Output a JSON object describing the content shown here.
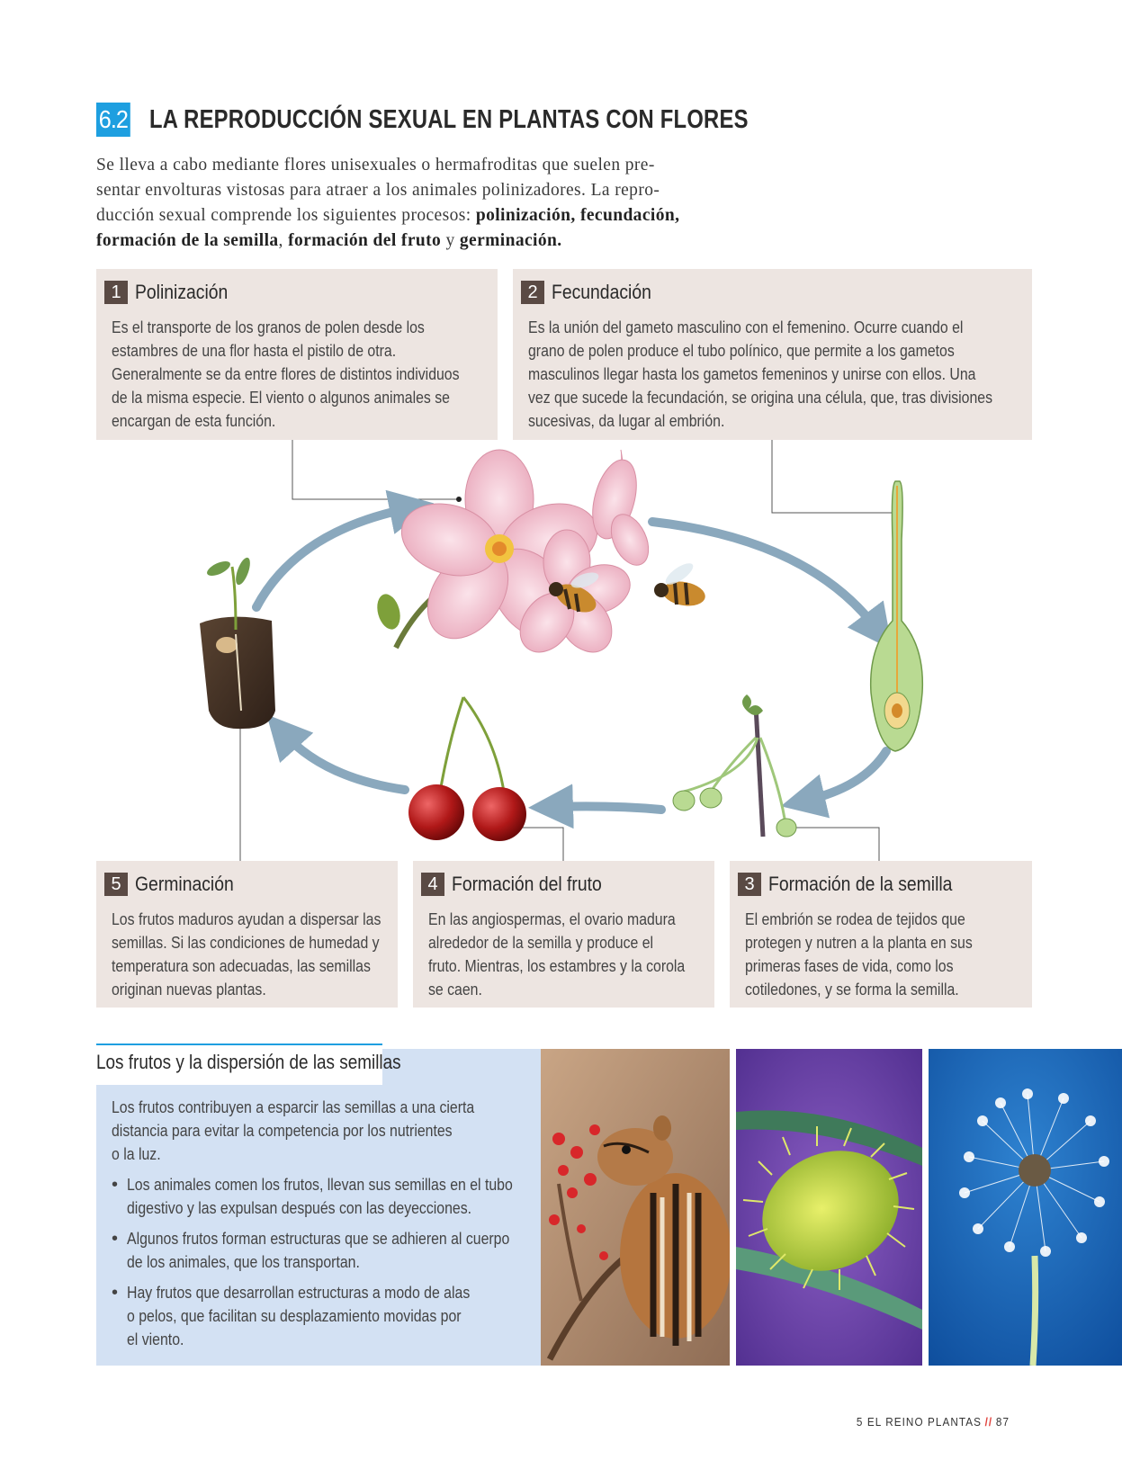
{
  "header": {
    "section_number": "6.2",
    "section_title": "LA REPRODUCCIÓN SEXUAL EN PLANTAS CON FLORES"
  },
  "intro": {
    "lines": [
      "Se lleva a cabo mediante flores unisexuales o hermafroditas que suelen pre-",
      "sentar envolturas vistosas para atraer a los animales polinizadores. La repro-",
      "ducción sexual comprende los siguientes procesos: "
    ],
    "bold_1": "polinización, fecundación,",
    "bold_2": "formación de la semilla",
    "sep_1": ", ",
    "bold_3": "formación del fruto",
    "sep_2": " y ",
    "bold_4": "germinación."
  },
  "steps": [
    {
      "number": "1",
      "title": "Polinización",
      "lines": [
        "Es el transporte de los granos de polen desde los",
        "estambres de una flor hasta el pistilo de otra.",
        "Generalmente se da entre flores de distintos individuos",
        "de la misma especie. El viento o algunos animales se",
        "encargan de esta función."
      ]
    },
    {
      "number": "2",
      "title": "Fecundación",
      "lines": [
        "Es la unión del gameto masculino con el femenino. Ocurre cuando el",
        "grano de polen produce el tubo polínico, que permite a los gametos",
        "masculinos llegar hasta los gametos femeninos y unirse con ellos. Una",
        "vez que sucede la fecundación, se origina una célula, que, tras divisiones",
        "sucesivas, da lugar al embrión."
      ]
    },
    {
      "number": "5",
      "title": "Germinación",
      "lines": [
        "Los frutos maduros ayudan a dispersar las",
        "semillas. Si las condiciones de humedad y",
        "temperatura son adecuadas, las semillas",
        "originan nuevas plantas."
      ]
    },
    {
      "number": "4",
      "title": "Formación del fruto",
      "lines": [
        "En las angiospermas, el ovario madura",
        "alrededor de la semilla y produce el",
        "fruto. Mientras, los estambres y la corola",
        "se caen."
      ]
    },
    {
      "number": "3",
      "title": "Formación de la semilla",
      "lines": [
        "El embrión se rodea de tejidos que",
        "protegen y nutren a la planta en sus",
        "primeras fases de vida, como los",
        "cotiledones, y se forma la semilla."
      ]
    }
  ],
  "dispersion": {
    "title": "Los frutos y la dispersión de las semillas",
    "intro_lines": [
      "Los frutos contribuyen a esparcir las semillas a una cierta",
      "distancia para evitar la competencia por los nutrientes",
      "o la luz."
    ],
    "bullets": [
      [
        "Los animales comen los frutos, llevan sus semillas en el tubo",
        "digestivo y las expulsan después con las deyecciones."
      ],
      [
        "Algunos frutos forman estructuras que se adhieren al cuerpo",
        "de los animales, que los transportan."
      ],
      [
        "Hay frutos que desarrollan estructuras a modo de alas",
        "o pelos, que facilitan su desplazamiento movidas por",
        "el viento."
      ]
    ]
  },
  "footer": {
    "chapter": "5 EL REINO PLANTAS",
    "separator": "//",
    "page": "87"
  }
}
